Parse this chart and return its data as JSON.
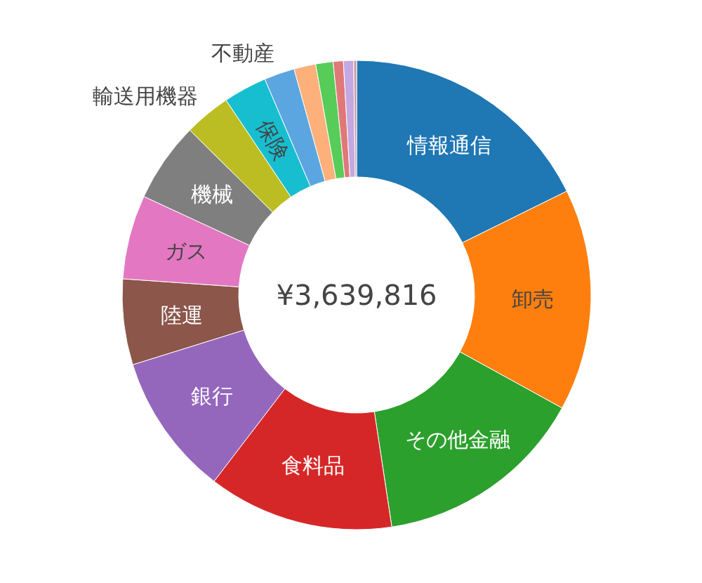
{
  "chart_data": {
    "type": "donut",
    "categories": [
      "情報通信",
      "卸売",
      "その他金融",
      "食料品",
      "銀行",
      "陸運",
      "ガス",
      "機械",
      "輸送用機器",
      "保険",
      "不動産",
      null,
      null,
      null,
      null,
      null
    ],
    "values": [
      17.7,
      15.3,
      14.6,
      12.8,
      9.8,
      5.9,
      5.8,
      5.5,
      3.2,
      3.0,
      2.1,
      1.5,
      1.2,
      0.7,
      0.7,
      0.2
    ],
    "colors": [
      "#1f77b4",
      "#ff7f0e",
      "#2ca02c",
      "#d62728",
      "#9467bd",
      "#8c564b",
      "#e377c2",
      "#7f7f7f",
      "#bcbd22",
      "#17becf",
      "#5ba6e0",
      "#fdb07a",
      "#58cc58",
      "#e07878",
      "#c4a8e2",
      "#d09aa0"
    ],
    "annotations": [
      "¥3,639,816"
    ]
  }
}
